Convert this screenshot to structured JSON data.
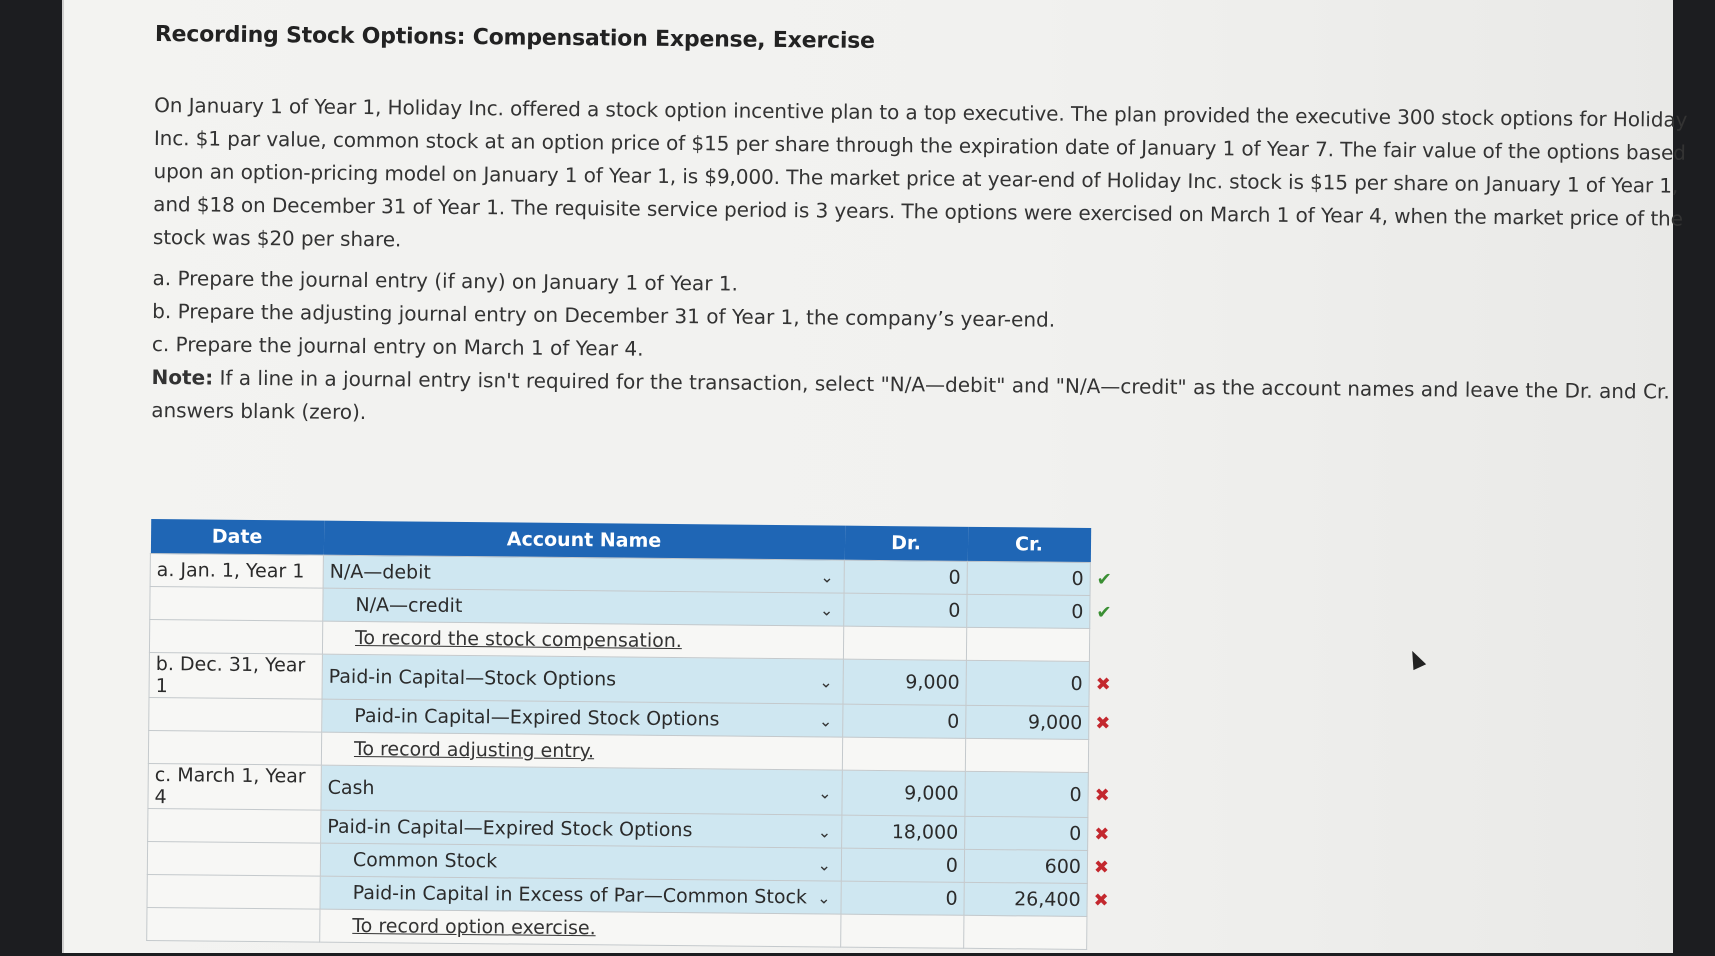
{
  "title": "Recording Stock Options: Compensation Expense, Exercise",
  "problem": "On January 1 of Year 1, Holiday Inc. offered a stock option incentive plan to a top executive. The plan provided the executive 300 stock options for Holiday Inc. $1 par value, common stock at an option price of $15 per share through the expiration date of January 1 of Year 7. The fair value of the options based upon an option-pricing model on January 1 of Year 1, is $9,000. The market price at year-end of Holiday Inc. stock is $15 per share on January 1 of Year 1, and $18 on December 31 of Year 1. The requisite service period is 3 years. The options were exercised on March 1 of Year 4, when the market price of the stock was $20 per share.",
  "parts": {
    "a": "a. Prepare the journal entry (if any) on January 1 of Year 1.",
    "b": "b. Prepare the adjusting journal entry on December 31 of Year 1, the company’s year-end.",
    "c": "c. Prepare the journal entry on March 1 of Year 4."
  },
  "note": {
    "label": "Note:",
    "text": "If a line in a journal entry isn't required for the transaction, select \"N/A—debit\" and \"N/A—credit\" as the account  names and leave the Dr. and Cr. answers blank (zero)."
  },
  "table": {
    "headers": {
      "date": "Date",
      "account": "Account Name",
      "dr": "Dr.",
      "cr": "Cr."
    },
    "rows": [
      {
        "date": "a. Jan. 1, Year 1",
        "account": "N/A—debit",
        "dr": "0",
        "cr": "0",
        "mark": "✔",
        "status": "correct",
        "indent": false
      },
      {
        "date": "",
        "account": "N/A—credit",
        "dr": "0",
        "cr": "0",
        "mark": "✔",
        "status": "correct",
        "indent": true
      },
      {
        "memo": "To record the stock compensation."
      },
      {
        "date": "b. Dec. 31, Year 1",
        "account": "Paid-in Capital—Stock Options",
        "dr": "9,000",
        "cr": "0",
        "mark": "✖",
        "status": "incorrect",
        "indent": false
      },
      {
        "date": "",
        "account": "Paid-in Capital—Expired Stock Options",
        "dr": "0",
        "cr": "9,000",
        "mark": "✖",
        "status": "incorrect",
        "indent": true
      },
      {
        "memo": "To record adjusting entry."
      },
      {
        "date": "c. March 1, Year 4",
        "account": "Cash",
        "dr": "9,000",
        "cr": "0",
        "mark": "✖",
        "status": "incorrect",
        "indent": false
      },
      {
        "date": "",
        "account": "Paid-in Capital—Expired Stock Options",
        "dr": "18,000",
        "cr": "0",
        "mark": "✖",
        "status": "incorrect",
        "indent": false
      },
      {
        "date": "",
        "account": "Common Stock",
        "dr": "0",
        "cr": "600",
        "mark": "✖",
        "status": "incorrect",
        "indent": true
      },
      {
        "date": "",
        "account": "Paid-in Capital in Excess of Par—Common Stock",
        "dr": "0",
        "cr": "26,400",
        "mark": "✖",
        "status": "incorrect",
        "indent": true
      },
      {
        "memo": "To record option exercise."
      }
    ]
  },
  "icons": {
    "dropdown": "chevron-down-icon",
    "correct": "check-icon",
    "incorrect": "x-icon"
  },
  "colors": {
    "header_bg": "#1f66b5",
    "input_bg": "#cfe7f1",
    "correct": "#3a8f33",
    "incorrect": "#c3282e"
  }
}
